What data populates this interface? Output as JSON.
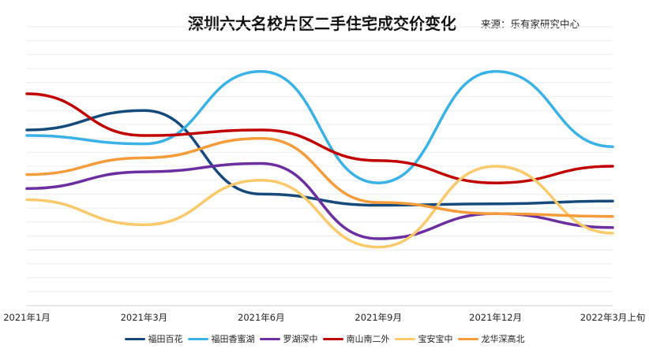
{
  "title": "深圳六大名校片区二手住宅成交价变化",
  "source": "来源：乐有家研究中心",
  "chart_data": {
    "type": "line",
    "smooth": true,
    "categories": [
      "2021年1月",
      "2021年3月",
      "2021年6月",
      "2021年9月",
      "2021年12月",
      "2022年3月上旬"
    ],
    "ylim": [
      0,
      100
    ],
    "grid": true,
    "legend": "bottom",
    "series": [
      {
        "name": "福田百花",
        "color": "#174A7C",
        "values": [
          63,
          70,
          40,
          36,
          36.5,
          37.5
        ]
      },
      {
        "name": "福田香蜜湖",
        "color": "#3AB2E6",
        "values": [
          61,
          58,
          84,
          44,
          84,
          57
        ]
      },
      {
        "name": "罗湖深中",
        "color": "#6B2FA0",
        "values": [
          42,
          48,
          51,
          24,
          33,
          28
        ]
      },
      {
        "name": "南山南二外",
        "color": "#C00000",
        "values": [
          76,
          61,
          63,
          52,
          44,
          50
        ]
      },
      {
        "name": "宝安宝中",
        "color": "#F9C96B",
        "values": [
          38,
          29,
          45,
          21,
          50,
          26
        ]
      },
      {
        "name": "龙华深高北",
        "color": "#F59B3A",
        "values": [
          47,
          53,
          60,
          37,
          33,
          32
        ]
      }
    ]
  }
}
